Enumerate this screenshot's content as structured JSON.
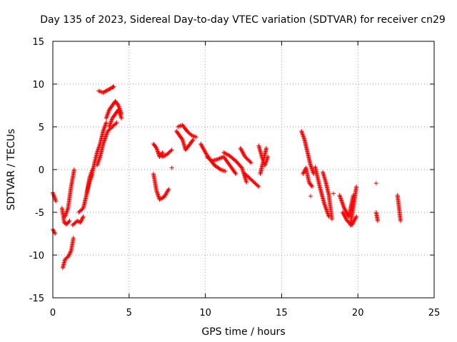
{
  "chart_data": {
    "type": "scatter",
    "title": "Day 135 of 2023, Sidereal Day-to-day VTEC variation (SDTVAR) for receiver cn29",
    "xlabel": "GPS time / hours",
    "ylabel": "SDTVAR / TECUs",
    "xlim": [
      0,
      25
    ],
    "ylim": [
      -15,
      15
    ],
    "xticks": [
      "0",
      "5",
      "10",
      "15",
      "20",
      "25"
    ],
    "yticks": [
      "-15",
      "-10",
      "-5",
      "0",
      "5",
      "10",
      "15"
    ],
    "xtick_values": [
      0,
      5,
      10,
      15,
      20,
      25
    ],
    "ytick_values": [
      -15,
      -10,
      -5,
      0,
      5,
      10,
      15
    ],
    "grid": true,
    "marker": "+",
    "color": "#ff0000",
    "tracks": [
      {
        "x": [
          0.0,
          0.2
        ],
        "y": [
          -2.7,
          -3.7
        ]
      },
      {
        "x": [
          0.0,
          0.15
        ],
        "y": [
          -7.0,
          -7.5
        ]
      },
      {
        "x": [
          0.6,
          0.75,
          0.9,
          1.1
        ],
        "y": [
          -4.5,
          -6.2,
          -6.4,
          -6.0
        ]
      },
      {
        "x": [
          0.65,
          0.8,
          1.0,
          1.2,
          1.35
        ],
        "y": [
          -11.5,
          -10.5,
          -10.2,
          -9.5,
          -8.0
        ]
      },
      {
        "x": [
          0.8,
          1.0,
          1.2,
          1.4
        ],
        "y": [
          -5.5,
          -4.5,
          -2.0,
          0.0
        ]
      },
      {
        "x": [
          1.3,
          1.6,
          1.8,
          2.0
        ],
        "y": [
          -6.5,
          -6.0,
          -6.2,
          -5.5
        ]
      },
      {
        "x": [
          1.7,
          2.0,
          2.2,
          2.4,
          2.6
        ],
        "y": [
          -5.0,
          -4.5,
          -3.0,
          -1.0,
          0.0
        ]
      },
      {
        "x": [
          2.2,
          2.4,
          2.6
        ],
        "y": [
          -3.0,
          -1.5,
          -0.5
        ]
      },
      {
        "x": [
          2.5,
          2.7,
          2.9,
          3.1,
          3.3,
          3.5
        ],
        "y": [
          -1.0,
          0.5,
          2.0,
          3.0,
          4.5,
          5.5
        ]
      },
      {
        "x": [
          2.9,
          3.1,
          3.3,
          3.6,
          3.9,
          4.2
        ],
        "y": [
          0.5,
          1.5,
          3.0,
          4.5,
          5.0,
          5.5
        ]
      },
      {
        "x": [
          3.5,
          3.7,
          3.9,
          4.1,
          4.3,
          4.5
        ],
        "y": [
          6.0,
          7.0,
          7.5,
          8.0,
          7.5,
          6.5
        ]
      },
      {
        "x": [
          3.7,
          3.9,
          4.1,
          4.3,
          4.5
        ],
        "y": [
          5.0,
          6.0,
          6.5,
          7.0,
          6.0
        ]
      },
      {
        "x": [
          3.0,
          3.3,
          3.6,
          3.9,
          4.0
        ],
        "y": [
          9.2,
          9.0,
          9.3,
          9.6,
          9.7
        ]
      },
      {
        "x": [
          6.6,
          6.8,
          7.0,
          7.2
        ],
        "y": [
          3.0,
          2.5,
          1.5,
          2.0
        ]
      },
      {
        "x": [
          6.6,
          6.8,
          7.0,
          7.3,
          7.6
        ],
        "y": [
          -0.5,
          -2.5,
          -3.5,
          -3.2,
          -2.3
        ]
      },
      {
        "x": [
          6.9,
          7.2,
          7.5,
          7.8
        ],
        "y": [
          2.0,
          1.5,
          1.8,
          2.3
        ]
      },
      {
        "x": [
          8.1,
          8.3,
          8.5,
          8.7,
          9.0,
          9.2
        ],
        "y": [
          4.5,
          4.0,
          3.5,
          2.3,
          3.0,
          3.5
        ]
      },
      {
        "x": [
          8.2,
          8.5,
          8.8,
          9.1,
          9.4
        ],
        "y": [
          5.0,
          5.2,
          4.5,
          4.0,
          3.8
        ]
      },
      {
        "x": [
          9.7,
          10.0,
          10.3,
          10.6,
          11.0,
          11.3
        ],
        "y": [
          3.0,
          2.0,
          1.2,
          0.5,
          0.0,
          -0.2
        ]
      },
      {
        "x": [
          10.1,
          10.4,
          10.8,
          11.2,
          11.6,
          12.0
        ],
        "y": [
          1.5,
          1.0,
          1.2,
          1.5,
          0.5,
          -0.5
        ]
      },
      {
        "x": [
          11.2,
          11.6,
          12.0,
          12.4,
          12.7
        ],
        "y": [
          2.0,
          1.6,
          1.0,
          0.2,
          -1.5
        ]
      },
      {
        "x": [
          12.6,
          12.9,
          13.2,
          13.5
        ],
        "y": [
          -0.5,
          -1.0,
          -1.5,
          -2.0
        ]
      },
      {
        "x": [
          12.3,
          12.6,
          13.0
        ],
        "y": [
          2.5,
          1.5,
          0.8
        ]
      },
      {
        "x": [
          13.5,
          13.7,
          13.9,
          14.1
        ],
        "y": [
          2.8,
          1.5,
          0.5,
          1.5
        ]
      },
      {
        "x": [
          13.6,
          13.8,
          14.0
        ],
        "y": [
          -0.5,
          1.0,
          2.5
        ]
      },
      {
        "x": [
          16.3,
          16.5,
          16.7,
          16.9,
          17.1
        ],
        "y": [
          4.5,
          3.5,
          2.0,
          0.5,
          -0.5
        ]
      },
      {
        "x": [
          16.4,
          16.6,
          16.8,
          17.0
        ],
        "y": [
          -0.5,
          0.2,
          -1.5,
          -2.0
        ]
      },
      {
        "x": [
          17.2,
          17.5,
          17.8,
          18.1
        ],
        "y": [
          0.3,
          -2.0,
          -4.0,
          -5.5
        ]
      },
      {
        "x": [
          17.7,
          17.9,
          18.1,
          18.3
        ],
        "y": [
          -0.3,
          -1.5,
          -3.0,
          -5.8
        ]
      },
      {
        "x": [
          19.0,
          19.3,
          19.6,
          19.9
        ],
        "y": [
          -5.0,
          -6.0,
          -6.5,
          -5.5
        ]
      },
      {
        "x": [
          18.8,
          19.1,
          19.4,
          19.7
        ],
        "y": [
          -3.0,
          -4.5,
          -5.5,
          -3.0
        ]
      },
      {
        "x": [
          19.5,
          19.7,
          19.9
        ],
        "y": [
          -6.5,
          -4.5,
          -2.0
        ]
      },
      {
        "x": [
          21.2,
          21.3
        ],
        "y": [
          -5.0,
          -6.0
        ]
      },
      {
        "x": [
          22.6,
          22.7,
          22.8
        ],
        "y": [
          -3.0,
          -4.5,
          -6.0
        ]
      }
    ],
    "isolated_points": [
      {
        "x": 7.8,
        "y": 0.2
      },
      {
        "x": 21.2,
        "y": -1.6
      },
      {
        "x": 16.9,
        "y": -3.1
      },
      {
        "x": 18.4,
        "y": -2.8
      }
    ]
  }
}
